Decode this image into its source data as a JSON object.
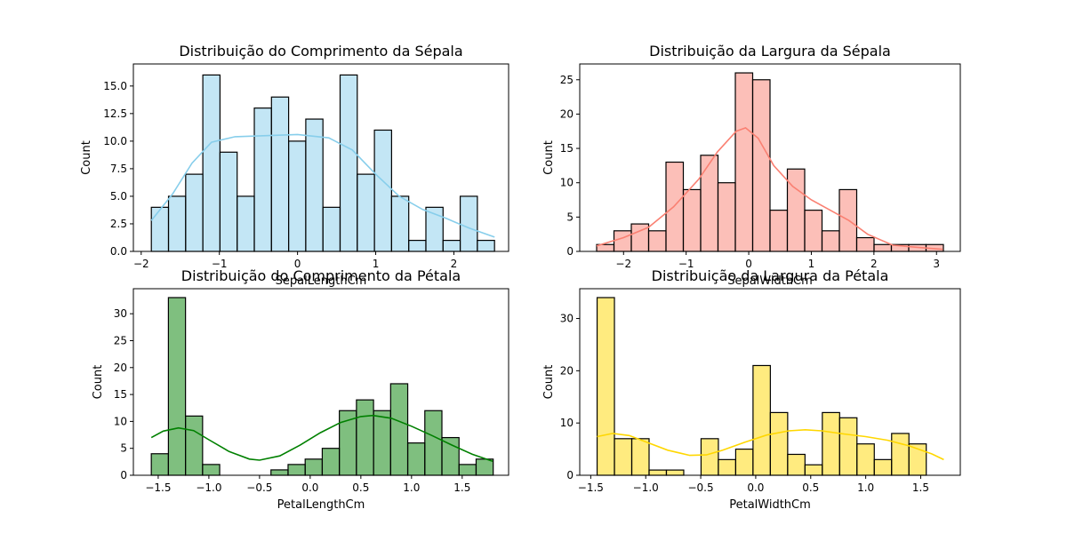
{
  "chart_data": [
    {
      "type": "bar",
      "title": "Distribuição do Comprimento da Sépala",
      "xlabel": "SepalLengthCm",
      "ylabel": "Count",
      "xlim": [
        -2.1,
        2.7
      ],
      "ylim": [
        0,
        17
      ],
      "xticks": [
        -2,
        -1,
        0,
        1,
        2
      ],
      "xtick_labels": [
        "−2",
        "−1",
        "0",
        "1",
        "2"
      ],
      "yticks": [
        0,
        2.5,
        5,
        7.5,
        10,
        12.5,
        15
      ],
      "ytick_labels": [
        "0.0",
        "2.5",
        "5.0",
        "7.5",
        "10.0",
        "12.5",
        "15.0"
      ],
      "bin_start": -1.87,
      "bin_width": 0.2195,
      "counts": [
        4,
        5,
        7,
        16,
        9,
        5,
        13,
        14,
        10,
        12,
        4,
        16,
        7,
        11,
        5,
        1,
        4,
        1,
        5,
        1
      ],
      "bar_color": "#87ceeb",
      "line_color": "#87ceeb",
      "kde": [
        [
          -1.87,
          2.8
        ],
        [
          -1.6,
          5.2
        ],
        [
          -1.35,
          8.0
        ],
        [
          -1.1,
          9.9
        ],
        [
          -0.8,
          10.4
        ],
        [
          -0.4,
          10.5
        ],
        [
          0,
          10.6
        ],
        [
          0.4,
          10.3
        ],
        [
          0.7,
          9.2
        ],
        [
          1.0,
          7.0
        ],
        [
          1.3,
          5.0
        ],
        [
          1.6,
          3.8
        ],
        [
          1.9,
          3.0
        ],
        [
          2.2,
          2.1
        ],
        [
          2.52,
          1.3
        ]
      ]
    },
    {
      "type": "bar",
      "title": "Distribuição da Largura da Sépala",
      "xlabel": "SepalWidthCm",
      "ylabel": "Count",
      "xlim": [
        -2.7,
        3.38
      ],
      "ylim": [
        0,
        27.3
      ],
      "xticks": [
        -2,
        -1,
        0,
        1,
        2,
        3
      ],
      "xtick_labels": [
        "−2",
        "−1",
        "0",
        "1",
        "2",
        "3"
      ],
      "yticks": [
        0,
        5,
        10,
        15,
        20,
        25
      ],
      "ytick_labels": [
        "0",
        "5",
        "10",
        "15",
        "20",
        "25"
      ],
      "bin_start": -2.43,
      "bin_width": 0.277,
      "counts": [
        1,
        3,
        4,
        3,
        13,
        9,
        14,
        10,
        26,
        25,
        6,
        12,
        6,
        3,
        9,
        2,
        1,
        1,
        1,
        1
      ],
      "bar_color": "#fa8072",
      "line_color": "#fa8072",
      "kde": [
        [
          -2.43,
          0.8
        ],
        [
          -2.0,
          2.0
        ],
        [
          -1.6,
          3.5
        ],
        [
          -1.2,
          6.5
        ],
        [
          -0.8,
          10.5
        ],
        [
          -0.5,
          14.5
        ],
        [
          -0.2,
          17.5
        ],
        [
          -0.05,
          18.0
        ],
        [
          0.15,
          16.5
        ],
        [
          0.4,
          12.5
        ],
        [
          0.7,
          9.5
        ],
        [
          1.0,
          7.5
        ],
        [
          1.3,
          6.0
        ],
        [
          1.6,
          4.5
        ],
        [
          1.9,
          2.5
        ],
        [
          2.3,
          0.9
        ],
        [
          2.7,
          0.6
        ],
        [
          3.1,
          0.3
        ]
      ]
    },
    {
      "type": "bar",
      "title": "Distribuição do Comprimento da Pétala",
      "xlabel": "PetalLengthCm",
      "ylabel": "Count",
      "xlim": [
        -1.745,
        1.958
      ],
      "ylim": [
        0,
        34.65
      ],
      "xticks": [
        -1.5,
        -1.0,
        -0.5,
        0.0,
        0.5,
        1.0,
        1.5
      ],
      "xtick_labels": [
        "−1.5",
        "−1.0",
        "−0.5",
        "0.0",
        "0.5",
        "1.0",
        "1.5"
      ],
      "yticks": [
        0,
        5,
        10,
        15,
        20,
        25,
        30
      ],
      "ytick_labels": [
        "0",
        "5",
        "10",
        "15",
        "20",
        "25",
        "30"
      ],
      "bin_start": -1.568,
      "bin_width": 0.1687,
      "counts": [
        4,
        33,
        11,
        2,
        0,
        0,
        0,
        1,
        2,
        3,
        5,
        12,
        14,
        12,
        17,
        6,
        12,
        7,
        2,
        3
      ],
      "bar_color": "#008000",
      "line_color": "#008000",
      "kde": [
        [
          -1.568,
          7.0
        ],
        [
          -1.45,
          8.2
        ],
        [
          -1.3,
          8.8
        ],
        [
          -1.15,
          8.3
        ],
        [
          -1.0,
          6.6
        ],
        [
          -0.8,
          4.4
        ],
        [
          -0.6,
          3.0
        ],
        [
          -0.5,
          2.8
        ],
        [
          -0.3,
          3.6
        ],
        [
          -0.1,
          5.6
        ],
        [
          0.1,
          7.9
        ],
        [
          0.3,
          9.8
        ],
        [
          0.5,
          10.9
        ],
        [
          0.62,
          11.1
        ],
        [
          0.8,
          10.6
        ],
        [
          1.0,
          9.1
        ],
        [
          1.2,
          7.4
        ],
        [
          1.4,
          5.6
        ],
        [
          1.6,
          3.9
        ],
        [
          1.8,
          2.6
        ]
      ]
    },
    {
      "type": "bar",
      "title": "Distribuição da Largura da Pétala",
      "xlabel": "PetalWidthCm",
      "ylabel": "Count",
      "xlim": [
        -1.6,
        1.86
      ],
      "ylim": [
        0,
        35.7
      ],
      "xticks": [
        -1.5,
        -1.0,
        -0.5,
        0.0,
        0.5,
        1.0,
        1.5
      ],
      "xtick_labels": [
        "−1.5",
        "−1.0",
        "−0.5",
        "0.0",
        "0.5",
        "1.0",
        "1.5"
      ],
      "yticks": [
        0,
        10,
        20,
        30
      ],
      "ytick_labels": [
        "0",
        "10",
        "20",
        "30"
      ],
      "bin_start": -1.442,
      "bin_width": 0.1575,
      "counts": [
        34,
        7,
        7,
        1,
        1,
        0,
        7,
        3,
        5,
        21,
        12,
        4,
        2,
        12,
        11,
        6,
        3,
        8,
        6,
        0
      ],
      "bar_color": "#ffd700",
      "line_color": "#ffd700",
      "kde": [
        [
          -1.442,
          7.4
        ],
        [
          -1.3,
          8.0
        ],
        [
          -1.15,
          7.6
        ],
        [
          -1.0,
          6.4
        ],
        [
          -0.8,
          4.8
        ],
        [
          -0.6,
          3.8
        ],
        [
          -0.45,
          3.9
        ],
        [
          -0.3,
          4.8
        ],
        [
          -0.1,
          6.3
        ],
        [
          0.1,
          7.7
        ],
        [
          0.3,
          8.5
        ],
        [
          0.45,
          8.7
        ],
        [
          0.6,
          8.5
        ],
        [
          0.8,
          7.9
        ],
        [
          1.0,
          7.4
        ],
        [
          1.2,
          6.7
        ],
        [
          1.4,
          5.6
        ],
        [
          1.6,
          4.1
        ],
        [
          1.71,
          3.0
        ]
      ]
    }
  ]
}
